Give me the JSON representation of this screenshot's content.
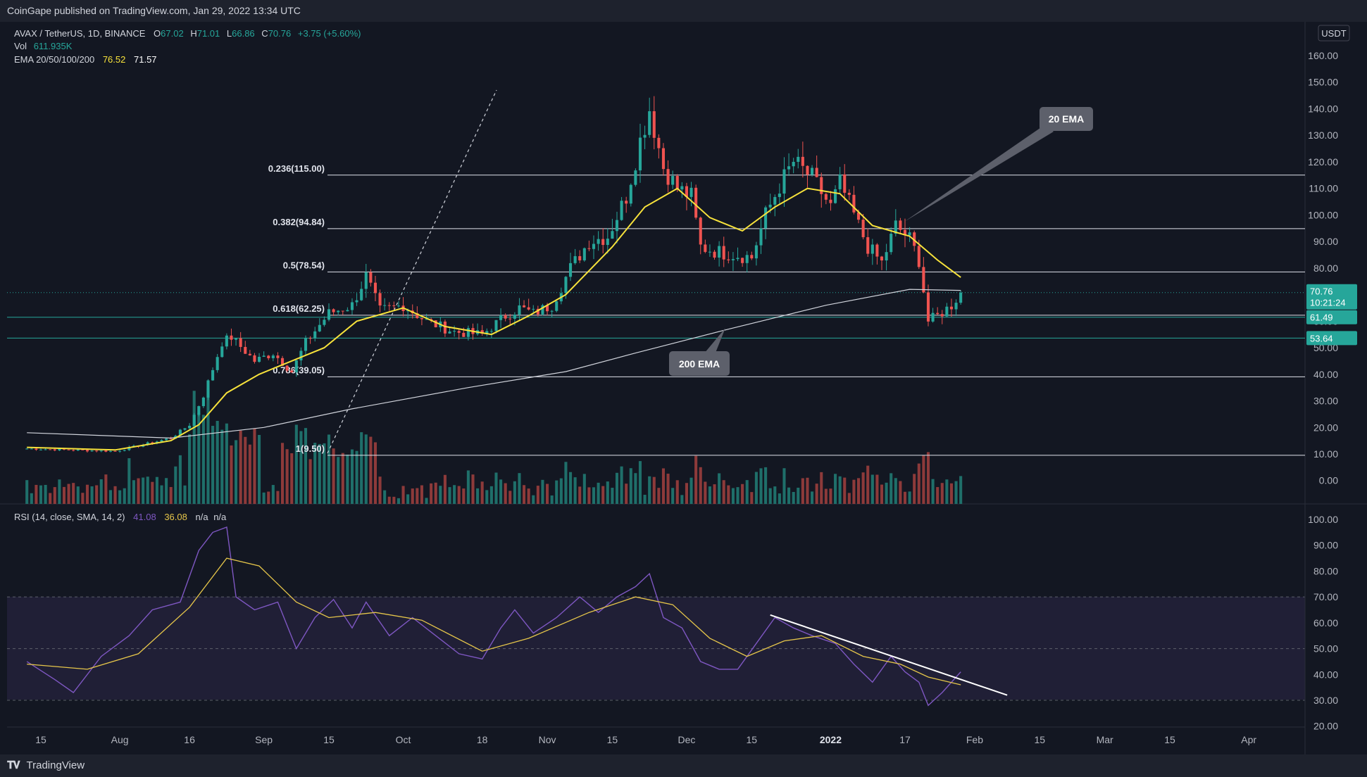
{
  "header": {
    "published": "CoinGape published on TradingView.com, Jan 29, 2022 13:34 UTC"
  },
  "footer": {
    "brand": "TradingView",
    "logo": "tradingview-logo-icon"
  },
  "legend": {
    "symbol": "AVAX / TetherUS, 1D, BINANCE",
    "o_label": "O",
    "o": "67.02",
    "h_label": "H",
    "h": "71.01",
    "l_label": "L",
    "l": "66.86",
    "c_label": "C",
    "c": "70.76",
    "change": "+3.75 (+5.60%)",
    "vol_label": "Vol",
    "vol": "611.935K",
    "ema_label": "EMA 20/50/100/200",
    "ema1": "76.52",
    "ema2": "71.57",
    "rsi_label": "RSI (14, close, SMA, 14, 2)",
    "rsi1": "41.08",
    "rsi2": "36.08",
    "rsi3": "n/a",
    "rsi4": "n/a"
  },
  "colors": {
    "background": "#131722",
    "up": "#26a69a",
    "down": "#ef5350",
    "vol_up": "#1f6f6a",
    "vol_down": "#8d3a3a",
    "ema20": "#f7e23b",
    "ema200": "#d1d4dc",
    "rsi": "#7e57c2",
    "rsi_ma": "#e6c64a",
    "support": "#26a69a"
  },
  "chart_data": [
    {
      "type": "candlestick",
      "title": "AVAX / TetherUS, 1D, BINANCE",
      "currency": "USDT",
      "ylim": [
        -10,
        172
      ],
      "y_ticks": [
        "10.00",
        "20.00",
        "30.00",
        "40.00",
        "50.00",
        "60.00",
        "70.00",
        "80.00",
        "90.00",
        "100.00",
        "110.00",
        "120.00",
        "130.00",
        "140.00",
        "150.00",
        "160.00",
        "0.00"
      ],
      "x_ticks": [
        "15",
        "Aug",
        "16",
        "Sep",
        "15",
        "Oct",
        "18",
        "Nov",
        "15",
        "Dec",
        "15",
        "2022",
        "17",
        "Feb",
        "15",
        "Mar",
        "15",
        "Apr"
      ],
      "fib_levels": [
        {
          "label": "0.236(115.00)",
          "value": 115.0
        },
        {
          "label": "0.382(94.84)",
          "value": 94.84
        },
        {
          "label": "0.5(78.54)",
          "value": 78.54
        },
        {
          "label": "0.618(62.25)",
          "value": 62.25
        },
        {
          "label": "0.786(39.05)",
          "value": 39.05
        },
        {
          "label": "1(9.50)",
          "value": 9.5
        }
      ],
      "horizontal_supports": [
        61.49,
        53.64
      ],
      "price_labels": [
        {
          "text": "70.76",
          "sub": "10:21:24",
          "value": 70.76
        },
        {
          "text": "61.49",
          "value": 61.49
        },
        {
          "text": "53.64",
          "value": 53.64
        }
      ],
      "annotations": [
        {
          "text": "20 EMA"
        },
        {
          "text": "200 EMA"
        }
      ],
      "anchors": [
        {
          "date": "2021-07-12",
          "close": 12
        },
        {
          "date": "2021-07-31",
          "close": 11
        },
        {
          "date": "2021-08-12",
          "close": 16
        },
        {
          "date": "2021-08-16",
          "close": 21
        },
        {
          "date": "2021-08-19",
          "close": 32
        },
        {
          "date": "2021-08-23",
          "close": 52
        },
        {
          "date": "2021-08-25",
          "close": 54
        },
        {
          "date": "2021-08-30",
          "close": 45
        },
        {
          "date": "2021-09-03",
          "close": 48
        },
        {
          "date": "2021-09-07",
          "close": 41
        },
        {
          "date": "2021-09-10",
          "close": 52
        },
        {
          "date": "2021-09-15",
          "close": 63
        },
        {
          "date": "2021-09-20",
          "close": 66
        },
        {
          "date": "2021-09-23",
          "close": 77
        },
        {
          "date": "2021-09-26",
          "close": 64
        },
        {
          "date": "2021-10-01",
          "close": 66
        },
        {
          "date": "2021-10-06",
          "close": 60
        },
        {
          "date": "2021-10-12",
          "close": 56
        },
        {
          "date": "2021-10-18",
          "close": 55
        },
        {
          "date": "2021-10-23",
          "close": 62
        },
        {
          "date": "2021-10-26",
          "close": 65
        },
        {
          "date": "2021-10-29",
          "close": 63
        },
        {
          "date": "2021-11-02",
          "close": 66
        },
        {
          "date": "2021-11-06",
          "close": 80
        },
        {
          "date": "2021-11-10",
          "close": 90
        },
        {
          "date": "2021-11-14",
          "close": 92
        },
        {
          "date": "2021-11-18",
          "close": 107
        },
        {
          "date": "2021-11-21",
          "close": 128
        },
        {
          "date": "2021-11-23",
          "close": 140
        },
        {
          "date": "2021-11-26",
          "close": 118
        },
        {
          "date": "2021-11-29",
          "close": 110
        },
        {
          "date": "2021-12-02",
          "close": 107
        },
        {
          "date": "2021-12-04",
          "close": 88
        },
        {
          "date": "2021-12-08",
          "close": 86
        },
        {
          "date": "2021-12-12",
          "close": 85
        },
        {
          "date": "2021-12-15",
          "close": 84
        },
        {
          "date": "2021-12-18",
          "close": 100
        },
        {
          "date": "2021-12-21",
          "close": 111
        },
        {
          "date": "2021-12-24",
          "close": 120
        },
        {
          "date": "2021-12-28",
          "close": 114
        },
        {
          "date": "2022-01-01",
          "close": 103
        },
        {
          "date": "2022-01-03",
          "close": 112
        },
        {
          "date": "2022-01-06",
          "close": 100
        },
        {
          "date": "2022-01-09",
          "close": 88
        },
        {
          "date": "2022-01-12",
          "close": 82
        },
        {
          "date": "2022-01-15",
          "close": 96
        },
        {
          "date": "2022-01-18",
          "close": 91
        },
        {
          "date": "2022-01-20",
          "close": 83
        },
        {
          "date": "2022-01-22",
          "close": 60
        },
        {
          "date": "2022-01-24",
          "close": 62
        },
        {
          "date": "2022-01-27",
          "close": 66
        },
        {
          "date": "2022-01-29",
          "close": 70.76
        }
      ],
      "ema20_points": [
        {
          "date": "2021-07-12",
          "value": 12.5
        },
        {
          "date": "2021-07-31",
          "value": 11.5
        },
        {
          "date": "2021-08-12",
          "value": 15
        },
        {
          "date": "2021-08-18",
          "value": 21
        },
        {
          "date": "2021-08-24",
          "value": 33
        },
        {
          "date": "2021-08-31",
          "value": 40
        },
        {
          "date": "2021-09-07",
          "value": 45
        },
        {
          "date": "2021-09-14",
          "value": 50
        },
        {
          "date": "2021-09-21",
          "value": 60
        },
        {
          "date": "2021-10-01",
          "value": 65
        },
        {
          "date": "2021-10-10",
          "value": 58
        },
        {
          "date": "2021-10-20",
          "value": 55
        },
        {
          "date": "2021-10-28",
          "value": 62
        },
        {
          "date": "2021-11-05",
          "value": 70
        },
        {
          "date": "2021-11-15",
          "value": 88
        },
        {
          "date": "2021-11-22",
          "value": 103
        },
        {
          "date": "2021-11-29",
          "value": 110
        },
        {
          "date": "2021-12-06",
          "value": 99
        },
        {
          "date": "2021-12-13",
          "value": 94
        },
        {
          "date": "2021-12-20",
          "value": 103
        },
        {
          "date": "2021-12-27",
          "value": 110
        },
        {
          "date": "2022-01-03",
          "value": 108
        },
        {
          "date": "2022-01-10",
          "value": 96
        },
        {
          "date": "2022-01-18",
          "value": 92
        },
        {
          "date": "2022-01-24",
          "value": 83
        },
        {
          "date": "2022-01-29",
          "value": 76.5
        }
      ],
      "ema200_points": [
        {
          "date": "2021-07-12",
          "value": 18
        },
        {
          "date": "2021-08-12",
          "value": 16
        },
        {
          "date": "2021-09-01",
          "value": 20
        },
        {
          "date": "2021-09-20",
          "value": 27
        },
        {
          "date": "2021-10-15",
          "value": 35
        },
        {
          "date": "2021-11-05",
          "value": 41
        },
        {
          "date": "2021-11-20",
          "value": 48
        },
        {
          "date": "2021-12-10",
          "value": 57
        },
        {
          "date": "2021-12-31",
          "value": 66
        },
        {
          "date": "2022-01-18",
          "value": 72
        },
        {
          "date": "2022-01-29",
          "value": 71.6
        }
      ]
    },
    {
      "type": "line",
      "title": "RSI (14, close, SMA, 14, 2)",
      "ylim": [
        18,
        102
      ],
      "y_ticks": [
        "20.00",
        "30.00",
        "40.00",
        "50.00",
        "60.00",
        "70.00",
        "80.00",
        "90.00",
        "100.00"
      ],
      "bands": [
        30,
        50,
        70
      ],
      "series": [
        {
          "name": "RSI",
          "points": [
            {
              "date": "2021-07-12",
              "value": 45
            },
            {
              "date": "2021-07-18",
              "value": 38
            },
            {
              "date": "2021-07-22",
              "value": 33
            },
            {
              "date": "2021-07-28",
              "value": 47
            },
            {
              "date": "2021-08-03",
              "value": 55
            },
            {
              "date": "2021-08-08",
              "value": 65
            },
            {
              "date": "2021-08-14",
              "value": 68
            },
            {
              "date": "2021-08-18",
              "value": 88
            },
            {
              "date": "2021-08-21",
              "value": 95
            },
            {
              "date": "2021-08-24",
              "value": 97
            },
            {
              "date": "2021-08-26",
              "value": 70
            },
            {
              "date": "2021-08-30",
              "value": 65
            },
            {
              "date": "2021-09-04",
              "value": 68
            },
            {
              "date": "2021-09-08",
              "value": 50
            },
            {
              "date": "2021-09-12",
              "value": 62
            },
            {
              "date": "2021-09-16",
              "value": 69
            },
            {
              "date": "2021-09-20",
              "value": 58
            },
            {
              "date": "2021-09-23",
              "value": 68
            },
            {
              "date": "2021-09-28",
              "value": 55
            },
            {
              "date": "2021-10-03",
              "value": 62
            },
            {
              "date": "2021-10-08",
              "value": 55
            },
            {
              "date": "2021-10-13",
              "value": 48
            },
            {
              "date": "2021-10-18",
              "value": 46
            },
            {
              "date": "2021-10-22",
              "value": 58
            },
            {
              "date": "2021-10-25",
              "value": 65
            },
            {
              "date": "2021-10-29",
              "value": 56
            },
            {
              "date": "2021-11-03",
              "value": 62
            },
            {
              "date": "2021-11-08",
              "value": 70
            },
            {
              "date": "2021-11-12",
              "value": 64
            },
            {
              "date": "2021-11-16",
              "value": 70
            },
            {
              "date": "2021-11-20",
              "value": 74
            },
            {
              "date": "2021-11-23",
              "value": 79
            },
            {
              "date": "2021-11-26",
              "value": 62
            },
            {
              "date": "2021-11-30",
              "value": 58
            },
            {
              "date": "2021-12-04",
              "value": 45
            },
            {
              "date": "2021-12-08",
              "value": 42
            },
            {
              "date": "2021-12-12",
              "value": 42
            },
            {
              "date": "2021-12-16",
              "value": 52
            },
            {
              "date": "2021-12-20",
              "value": 62
            },
            {
              "date": "2021-12-24",
              "value": 58
            },
            {
              "date": "2021-12-28",
              "value": 55
            },
            {
              "date": "2022-01-02",
              "value": 52
            },
            {
              "date": "2022-01-06",
              "value": 44
            },
            {
              "date": "2022-01-10",
              "value": 37
            },
            {
              "date": "2022-01-14",
              "value": 47
            },
            {
              "date": "2022-01-17",
              "value": 41
            },
            {
              "date": "2022-01-20",
              "value": 37
            },
            {
              "date": "2022-01-22",
              "value": 28
            },
            {
              "date": "2022-01-25",
              "value": 33
            },
            {
              "date": "2022-01-29",
              "value": 41
            }
          ]
        },
        {
          "name": "RSI MA",
          "points": [
            {
              "date": "2021-07-12",
              "value": 44
            },
            {
              "date": "2021-07-25",
              "value": 42
            },
            {
              "date": "2021-08-05",
              "value": 48
            },
            {
              "date": "2021-08-16",
              "value": 66
            },
            {
              "date": "2021-08-24",
              "value": 85
            },
            {
              "date": "2021-08-31",
              "value": 82
            },
            {
              "date": "2021-09-08",
              "value": 68
            },
            {
              "date": "2021-09-15",
              "value": 62
            },
            {
              "date": "2021-09-25",
              "value": 64
            },
            {
              "date": "2021-10-05",
              "value": 61
            },
            {
              "date": "2021-10-18",
              "value": 49
            },
            {
              "date": "2021-10-28",
              "value": 54
            },
            {
              "date": "2021-11-10",
              "value": 64
            },
            {
              "date": "2021-11-20",
              "value": 70
            },
            {
              "date": "2021-11-28",
              "value": 67
            },
            {
              "date": "2021-12-06",
              "value": 54
            },
            {
              "date": "2021-12-14",
              "value": 47
            },
            {
              "date": "2021-12-22",
              "value": 53
            },
            {
              "date": "2021-12-30",
              "value": 55
            },
            {
              "date": "2022-01-08",
              "value": 47
            },
            {
              "date": "2022-01-16",
              "value": 44
            },
            {
              "date": "2022-01-22",
              "value": 39
            },
            {
              "date": "2022-01-29",
              "value": 36
            }
          ]
        }
      ],
      "trendline": [
        {
          "date": "2021-12-19",
          "value": 63
        },
        {
          "date": "2022-02-08",
          "value": 32
        }
      ]
    }
  ]
}
